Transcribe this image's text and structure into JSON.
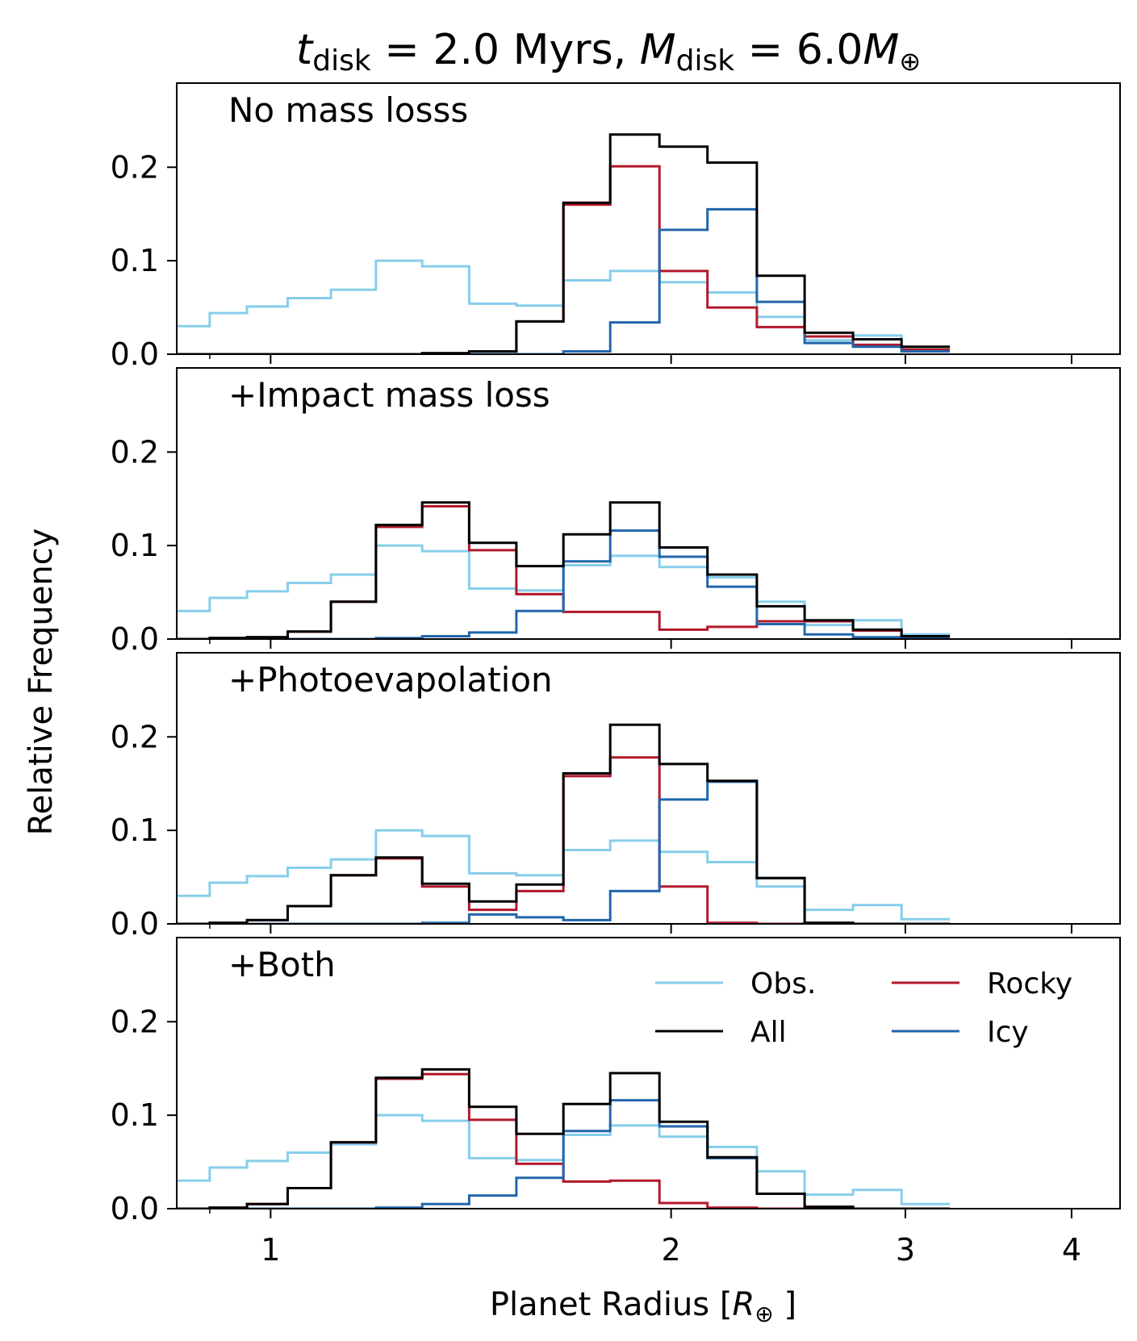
{
  "chart_data": {
    "type": "histogram-step",
    "title": {
      "t_sym": "t",
      "t_sub": "disk",
      "mid": " = 2.0 Myrs, ",
      "m_sym": "M",
      "m_sub": "disk",
      "end": " = 6.0",
      "m2_sym": "M",
      "m2_sub": "⊕"
    },
    "xlabel": {
      "prefix": "Planet Radius [",
      "sym": "R",
      "sub": "⊕",
      "suffix": " ]"
    },
    "ylabel": "Relative Frequency",
    "x_scale": "log",
    "xlim": [
      0.85,
      4.35
    ],
    "ylim": [
      0,
      0.29
    ],
    "x_ticks": [
      {
        "value": 1,
        "label": "1"
      },
      {
        "value": 2,
        "label": "2"
      },
      {
        "value": 3,
        "label": "3"
      },
      {
        "value": 4,
        "label": "4"
      }
    ],
    "y_ticks": [
      {
        "value": 0.0,
        "label": "0.0"
      },
      {
        "value": 0.1,
        "label": "0.1"
      },
      {
        "value": 0.2,
        "label": "0.2"
      }
    ],
    "bin_edges": [
      0.85,
      0.9,
      0.96,
      1.03,
      1.11,
      1.2,
      1.3,
      1.41,
      1.53,
      1.66,
      1.8,
      1.96,
      2.13,
      2.32,
      2.52,
      2.74,
      2.98,
      3.24,
      3.52,
      3.83,
      4.17,
      4.35
    ],
    "colors": {
      "obs": "#87ceeb",
      "all": "#000000",
      "rocky": "#b2182b",
      "icy": "#2166ac"
    },
    "legend": [
      {
        "key": "obs",
        "label": "Obs."
      },
      {
        "key": "rocky",
        "label": "Rocky"
      },
      {
        "key": "all",
        "label": "All"
      },
      {
        "key": "icy",
        "label": "Icy"
      }
    ],
    "panels": [
      {
        "label": "No mass losss",
        "series": {
          "obs": [
            0.03,
            0.044,
            0.051,
            0.06,
            0.069,
            0.1,
            0.094,
            0.054,
            0.052,
            0.079,
            0.089,
            0.077,
            0.066,
            0.04,
            0.015,
            0.02,
            0.005
          ],
          "rocky": [
            0,
            0,
            0,
            0,
            0,
            0,
            0.001,
            0.003,
            0.035,
            0.16,
            0.201,
            0.089,
            0.05,
            0.029,
            0.019,
            0.01,
            0.005
          ],
          "icy": [
            0,
            0,
            0,
            0,
            0,
            0,
            0,
            0,
            0,
            0.003,
            0.034,
            0.133,
            0.155,
            0.056,
            0.012,
            0.008,
            0.003
          ],
          "all": [
            0,
            0,
            0,
            0,
            0,
            0,
            0.001,
            0.003,
            0.035,
            0.162,
            0.235,
            0.222,
            0.205,
            0.084,
            0.023,
            0.016,
            0.008
          ]
        }
      },
      {
        "label": "+Impact mass loss",
        "series": {
          "obs": [
            0.03,
            0.044,
            0.051,
            0.06,
            0.069,
            0.1,
            0.094,
            0.054,
            0.052,
            0.079,
            0.089,
            0.077,
            0.066,
            0.04,
            0.015,
            0.02,
            0.005
          ],
          "rocky": [
            0,
            0.001,
            0.002,
            0.008,
            0.04,
            0.12,
            0.142,
            0.095,
            0.048,
            0.029,
            0.029,
            0.01,
            0.013,
            0.019,
            0.019,
            0.009,
            0.003
          ],
          "icy": [
            0,
            0,
            0,
            0,
            0,
            0.001,
            0.003,
            0.007,
            0.03,
            0.083,
            0.116,
            0.088,
            0.056,
            0.016,
            0.005,
            0.002,
            0.001
          ],
          "all": [
            0,
            0.001,
            0.002,
            0.008,
            0.04,
            0.122,
            0.146,
            0.103,
            0.078,
            0.112,
            0.146,
            0.098,
            0.069,
            0.035,
            0.02,
            0.01,
            0.003
          ]
        }
      },
      {
        "label": "+Photoevapolation",
        "series": {
          "obs": [
            0.03,
            0.044,
            0.051,
            0.06,
            0.069,
            0.1,
            0.094,
            0.054,
            0.052,
            0.079,
            0.089,
            0.077,
            0.066,
            0.04,
            0.015,
            0.02,
            0.005
          ],
          "rocky": [
            0,
            0.001,
            0.004,
            0.019,
            0.052,
            0.07,
            0.04,
            0.015,
            0.035,
            0.158,
            0.178,
            0.04,
            0.001,
            0,
            0,
            0,
            0
          ],
          "icy": [
            0,
            0,
            0,
            0,
            0,
            0,
            0.001,
            0.01,
            0.007,
            0.004,
            0.035,
            0.133,
            0.152,
            0.049,
            0.001,
            0,
            0
          ],
          "all": [
            0,
            0.001,
            0.004,
            0.019,
            0.052,
            0.071,
            0.043,
            0.024,
            0.042,
            0.161,
            0.213,
            0.171,
            0.153,
            0.049,
            0.001,
            0,
            0
          ]
        }
      },
      {
        "label": "+Both",
        "series": {
          "obs": [
            0.03,
            0.044,
            0.051,
            0.06,
            0.069,
            0.1,
            0.094,
            0.054,
            0.052,
            0.079,
            0.089,
            0.077,
            0.066,
            0.04,
            0.015,
            0.02,
            0.005
          ],
          "rocky": [
            0,
            0.001,
            0.005,
            0.022,
            0.071,
            0.139,
            0.144,
            0.095,
            0.048,
            0.029,
            0.03,
            0.006,
            0.001,
            0,
            0.002,
            0,
            0
          ],
          "icy": [
            0,
            0,
            0,
            0,
            0,
            0.001,
            0.005,
            0.014,
            0.033,
            0.083,
            0.116,
            0.088,
            0.054,
            0.016,
            0.001,
            0,
            0
          ],
          "all": [
            0,
            0.001,
            0.005,
            0.022,
            0.071,
            0.14,
            0.149,
            0.109,
            0.08,
            0.112,
            0.145,
            0.093,
            0.055,
            0.016,
            0.002,
            0,
            0
          ]
        }
      }
    ]
  }
}
